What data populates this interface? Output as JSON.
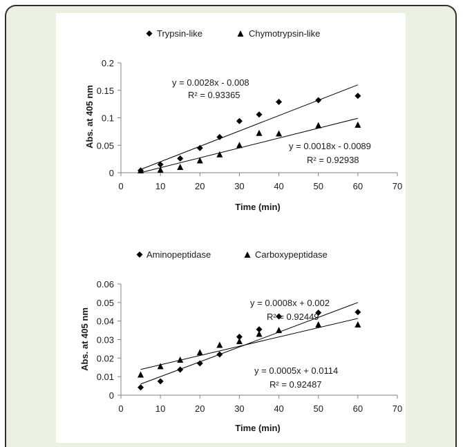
{
  "chart_data": [
    {
      "type": "scatter",
      "xlabel": "Time (min)",
      "ylabel": "Abs. at 405 nm",
      "xlim": [
        0,
        70
      ],
      "ylim": [
        0,
        0.2
      ],
      "x_ticks": [
        "0",
        "10",
        "20",
        "30",
        "40",
        "50",
        "60",
        "70"
      ],
      "y_ticks": [
        "0",
        "0.05",
        "0.1",
        "0.15",
        "0.2"
      ],
      "grid": false,
      "legend_position": "top",
      "series": [
        {
          "name": "Trypsin-like",
          "marker": "diamond",
          "x": [
            5,
            10,
            15,
            20,
            25,
            30,
            35,
            40,
            50,
            60
          ],
          "y": [
            0.004,
            0.015,
            0.026,
            0.045,
            0.065,
            0.094,
            0.106,
            0.129,
            0.132,
            0.14
          ],
          "trendline": {
            "slope": 0.0028,
            "intercept": -0.008,
            "equation": "y = 0.0028x - 0.008",
            "r2": "R² = 0.93365"
          }
        },
        {
          "name": "Chymotrypsin-like",
          "marker": "triangle",
          "x": [
            5,
            10,
            15,
            20,
            25,
            30,
            35,
            40,
            50,
            60
          ],
          "y": [
            0.004,
            0.005,
            0.01,
            0.022,
            0.033,
            0.05,
            0.072,
            0.071,
            0.086,
            0.087
          ],
          "trendline": {
            "slope": 0.0018,
            "intercept": -0.0089,
            "equation": "y = 0.0018x - 0.0089",
            "r2": "R² = 0.92938"
          }
        }
      ]
    },
    {
      "type": "scatter",
      "xlabel": "Time (min)",
      "ylabel": "Abs. at 405 nm",
      "xlim": [
        0,
        70
      ],
      "ylim": [
        0,
        0.06
      ],
      "x_ticks": [
        "0",
        "10",
        "20",
        "30",
        "40",
        "50",
        "60",
        "70"
      ],
      "y_ticks": [
        "0",
        "0.01",
        "0.02",
        "0.03",
        "0.04",
        "0.05",
        "0.06"
      ],
      "grid": false,
      "legend_position": "top",
      "series": [
        {
          "name": "Aminopeptidase",
          "marker": "diamond",
          "x": [
            5,
            10,
            15,
            20,
            25,
            30,
            35,
            40,
            50,
            60
          ],
          "y": [
            0.0042,
            0.0075,
            0.0138,
            0.0172,
            0.022,
            0.0315,
            0.0355,
            0.0425,
            0.0445,
            0.0448
          ],
          "trendline": {
            "slope": 0.0008,
            "intercept": 0.002,
            "equation": "y = 0.0008x + 0.002",
            "r2": "R² = 0.92449"
          }
        },
        {
          "name": "Carboxypeptidase",
          "marker": "triangle",
          "x": [
            5,
            10,
            15,
            20,
            25,
            30,
            35,
            40,
            50,
            60
          ],
          "y": [
            0.011,
            0.0155,
            0.019,
            0.023,
            0.027,
            0.029,
            0.033,
            0.035,
            0.038,
            0.038
          ],
          "trendline": {
            "slope": 0.0005,
            "intercept": 0.0114,
            "equation": "y = 0.0005x + 0.0114",
            "r2": "R² = 0.92487"
          }
        }
      ]
    }
  ]
}
